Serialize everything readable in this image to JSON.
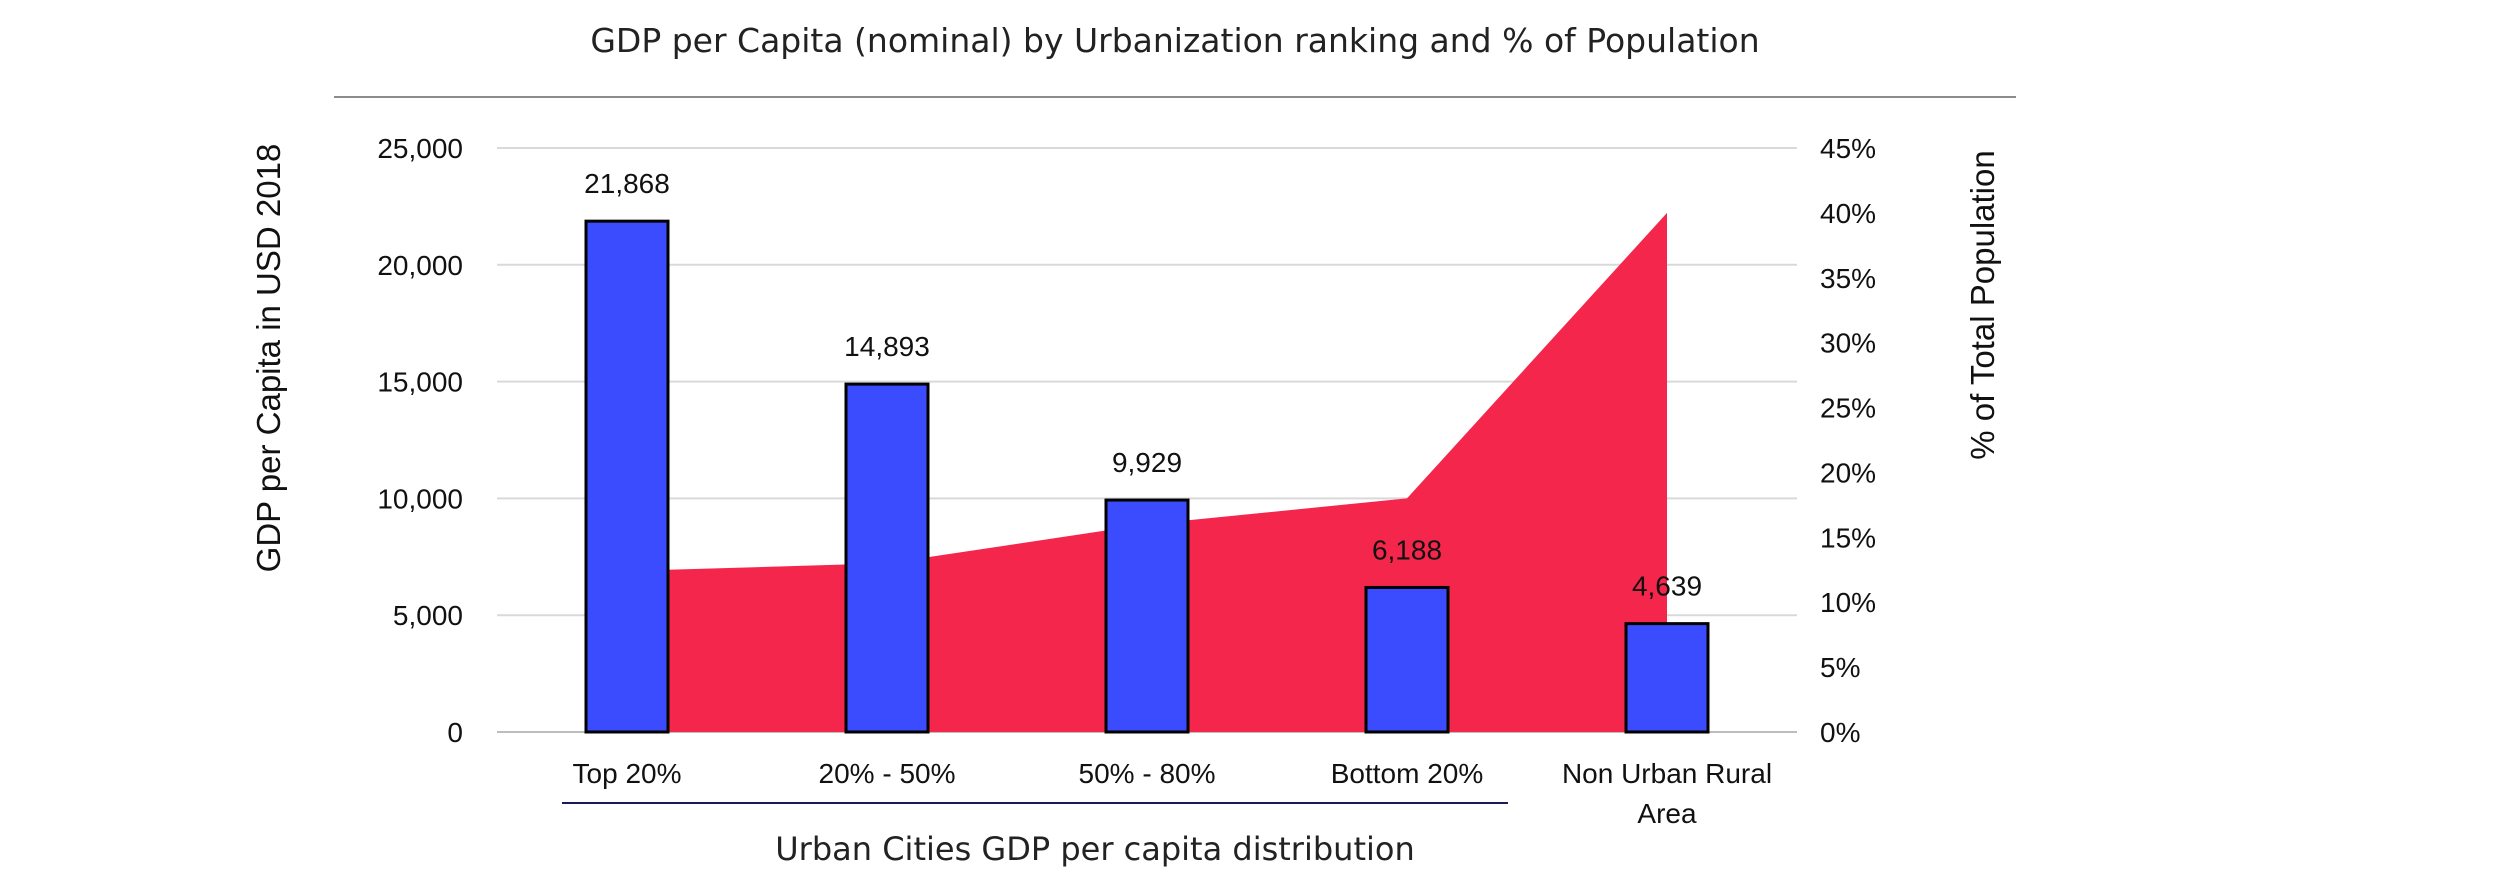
{
  "chart_data": {
    "type": "bar",
    "title": "GDP per Capita (nominal) by Urbanization ranking and % of Population",
    "categories": [
      "Top 20%",
      "20% - 50%",
      "50% - 80%",
      "Bottom 20%",
      "Non Urban Rural Area"
    ],
    "series": [
      {
        "name": "",
        "type": "bar",
        "axis": "left",
        "color": "#3b4cff",
        "values": [
          21868,
          14893,
          9929,
          6188,
          4639
        ],
        "data_labels": [
          "21,868",
          "14,893",
          "9,929",
          "6,188",
          "4,639"
        ]
      },
      {
        "name": "",
        "type": "area",
        "axis": "right",
        "color": "#f5264b",
        "values": [
          12.5,
          13.0,
          16.0,
          18.0,
          40.0
        ]
      }
    ],
    "ylabel": "GDP per Capita  in USD 2018",
    "y2label": "% of Total Population",
    "ylim": [
      0,
      25000
    ],
    "y2lim": [
      0,
      45
    ],
    "yticks": [
      "0",
      "5,000",
      "10,000",
      "15,000",
      "20,000",
      "25,000"
    ],
    "y2ticks": [
      "0%",
      "5%",
      "10%",
      "15%",
      "20%",
      "25%",
      "30%",
      "35%",
      "40%",
      "45%"
    ],
    "group_label": "Urban Cities GDP per capita distribution",
    "grid": true,
    "legend": "none"
  }
}
